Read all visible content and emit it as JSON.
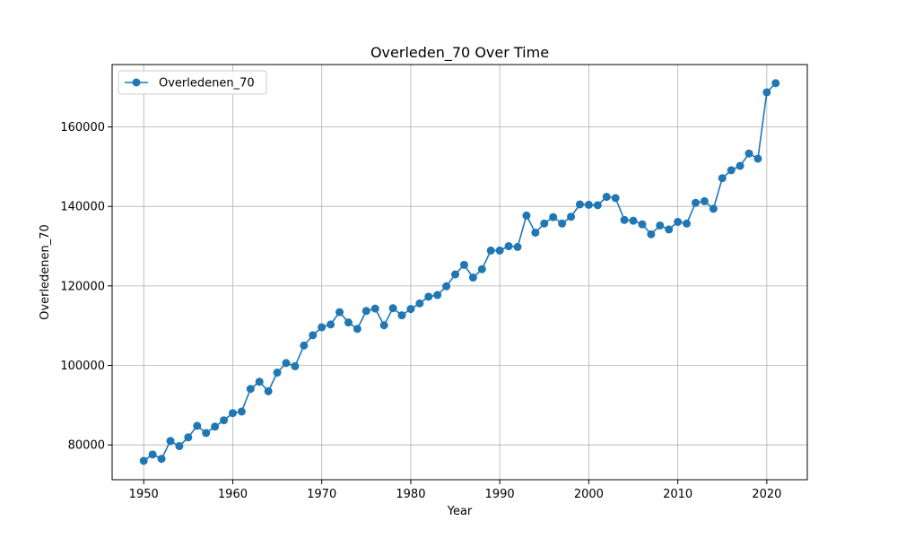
{
  "chart_data": {
    "type": "line",
    "title": "Overleden_70 Over Time",
    "xlabel": "Year",
    "ylabel": "Overledenen_70",
    "xlim": [
      1946.45,
      2024.55
    ],
    "ylim": [
      71250,
      175680
    ],
    "xticks": [
      1950,
      1960,
      1970,
      1980,
      1990,
      2000,
      2010,
      2020
    ],
    "yticks": [
      80000,
      100000,
      120000,
      140000,
      160000
    ],
    "grid": true,
    "legend": "top-left",
    "series": [
      {
        "name": "Overledenen_70",
        "color": "#1f77b4",
        "marker": "circle",
        "x": [
          1950,
          1951,
          1952,
          1953,
          1954,
          1955,
          1956,
          1957,
          1958,
          1959,
          1960,
          1961,
          1962,
          1963,
          1964,
          1965,
          1966,
          1967,
          1968,
          1969,
          1970,
          1971,
          1972,
          1973,
          1974,
          1975,
          1976,
          1977,
          1978,
          1979,
          1980,
          1981,
          1982,
          1983,
          1984,
          1985,
          1986,
          1987,
          1988,
          1989,
          1990,
          1991,
          1992,
          1993,
          1994,
          1995,
          1996,
          1997,
          1998,
          1999,
          2000,
          2001,
          2002,
          2003,
          2004,
          2005,
          2006,
          2007,
          2008,
          2009,
          2010,
          2011,
          2012,
          2013,
          2014,
          2015,
          2016,
          2017,
          2018,
          2019,
          2020,
          2021
        ],
        "values": [
          76000,
          77600,
          76500,
          81000,
          79700,
          81900,
          84800,
          83000,
          84600,
          86200,
          88000,
          88400,
          94100,
          95900,
          93500,
          98200,
          100600,
          99800,
          105000,
          107600,
          109600,
          110300,
          113400,
          110800,
          109200,
          113700,
          114300,
          110100,
          114400,
          112600,
          114200,
          115600,
          117300,
          117700,
          119900,
          122900,
          125300,
          122100,
          124200,
          128900,
          128900,
          130000,
          129800,
          137700,
          133400,
          135700,
          137300,
          135700,
          137400,
          140500,
          140400,
          140300,
          142400,
          142100,
          136600,
          136400,
          135500,
          133000,
          135200,
          134200,
          136100,
          135700,
          140900,
          141300,
          139400,
          147100,
          149100,
          150200,
          153300,
          152000,
          168700,
          171000
        ]
      }
    ]
  }
}
